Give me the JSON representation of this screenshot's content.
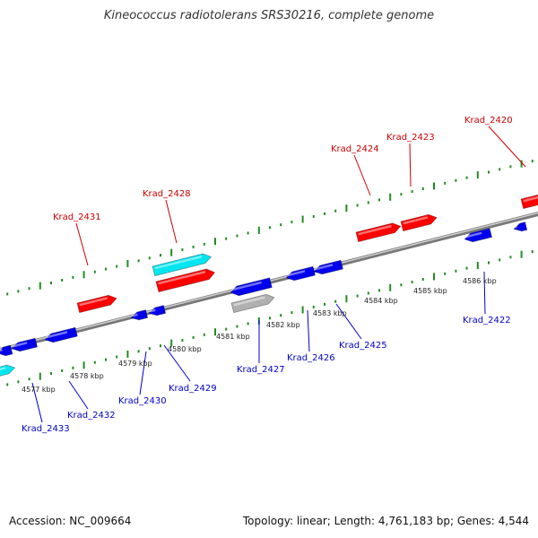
{
  "title": "Kineococcus radiotolerans SRS30216, complete genome",
  "footer": {
    "accession": "Accession: NC_009664",
    "summary": "Topology: linear; Length: 4,761,183 bp; Genes: 4,544"
  },
  "colors": {
    "forward_gene": "#ff0000",
    "reverse_gene": "#0000ee",
    "rna_gene": "#00e5f0",
    "pseudo_gene": "#b0b0b0",
    "backbone": "#888888",
    "ticks": "#228b22",
    "forward_label": "#cc0000",
    "reverse_label": "#0000cc"
  },
  "kbp_labels": [
    "4577 kbp",
    "4578 kbp",
    "4579 kbp",
    "4580 kbp",
    "4581 kbp",
    "4582 kbp",
    "4583 kbp",
    "4584 kbp",
    "4585 kbp",
    "4586 kbp"
  ],
  "upper_gene_labels": [
    "Krad_2431",
    "Krad_2428",
    "Krad_2424",
    "Krad_2423",
    "Krad_2420"
  ],
  "lower_gene_labels": [
    "Krad_2433",
    "Krad_2432",
    "Krad_2430",
    "Krad_2429",
    "Krad_2427",
    "Krad_2426",
    "Krad_2425",
    "Krad_2422"
  ]
}
